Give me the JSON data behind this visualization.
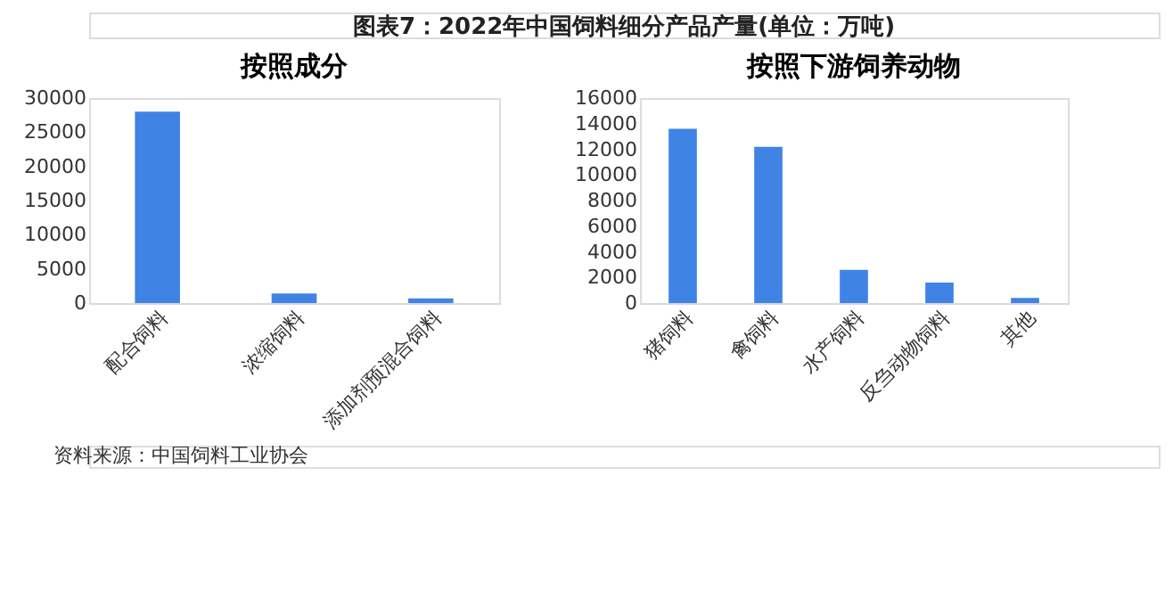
{
  "chart_data": [
    {
      "type": "bar",
      "title": "按照成分",
      "categories": [
        "配合饲料",
        "浓缩饲料",
        "添加剂预混合饲料"
      ],
      "values": [
        28000,
        1400,
        700
      ],
      "color": "#3f84e5",
      "ylim": [
        0,
        30000
      ],
      "yticks": [
        0,
        5000,
        10000,
        15000,
        20000,
        25000,
        30000
      ],
      "annotations": [
        "图表7：2022年中国饲料细分产品产量(单位：万吨)",
        "资料来源：中国饲料工业协会"
      ]
    },
    {
      "type": "bar",
      "title": "按照下游饲养动物",
      "categories": [
        "猪饲料",
        "禽饲料",
        "水产饲料",
        "反刍动物饲料",
        "其他"
      ],
      "values": [
        13600,
        12200,
        2600,
        1600,
        400
      ],
      "color": "#3f84e5",
      "ylim": [
        0,
        16000
      ],
      "yticks": [
        0,
        2000,
        4000,
        6000,
        8000,
        10000,
        12000,
        14000,
        16000
      ]
    }
  ]
}
